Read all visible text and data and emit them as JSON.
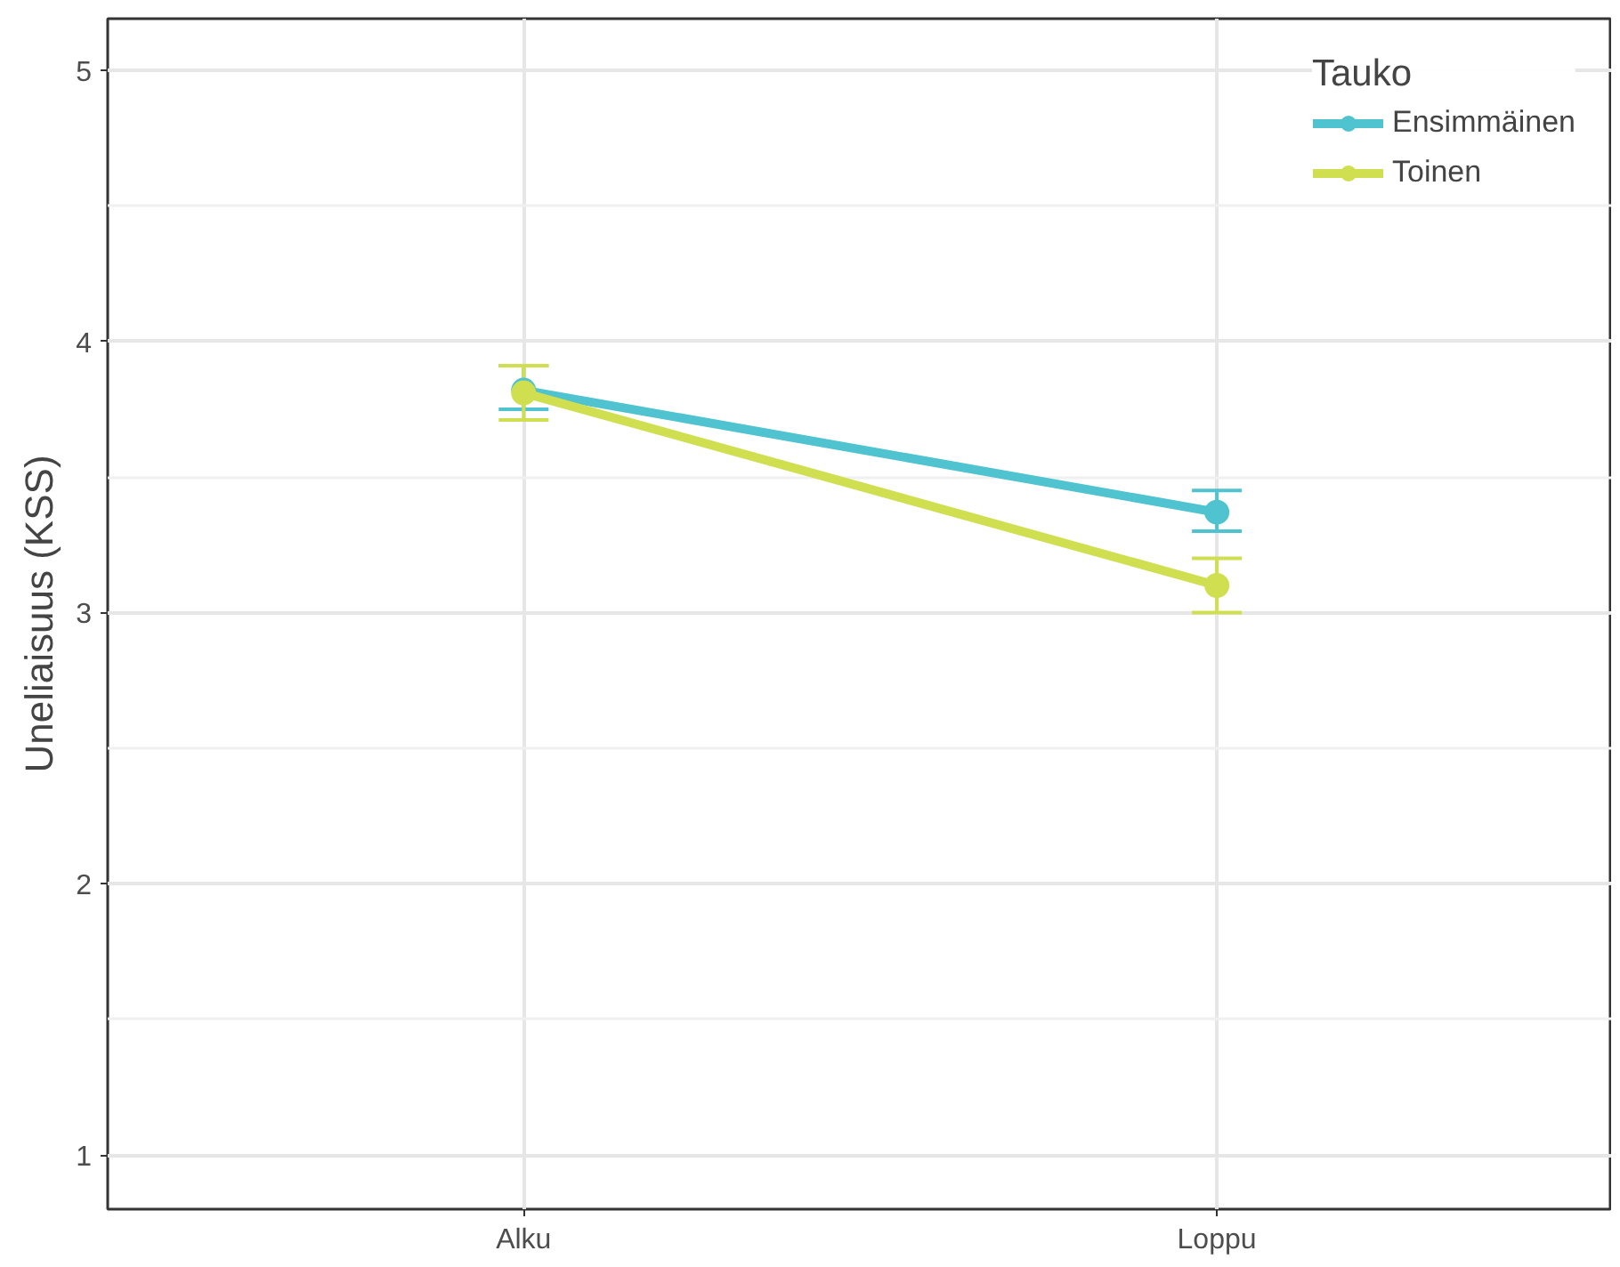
{
  "chart_data": {
    "type": "line",
    "ylabel": "Uneliaisuus (KSS)",
    "legend_title": "Tauko",
    "categories": [
      "Alku",
      "Loppu"
    ],
    "series": [
      {
        "name": "Ensimmäinen",
        "color": "#4fc3cf",
        "values": [
          3.82,
          3.37
        ],
        "errors": [
          [
            3.75,
            3.91
          ],
          [
            3.3,
            3.45
          ]
        ]
      },
      {
        "name": "Toinen",
        "color": "#cfdf4f",
        "values": [
          3.81,
          3.1
        ],
        "errors": [
          [
            3.71,
            3.91
          ],
          [
            3.0,
            3.2
          ]
        ]
      }
    ],
    "ylim": [
      0.8,
      5.19
    ],
    "yticks": [
      1,
      2,
      3,
      4,
      5
    ],
    "grid": true,
    "legend": "top right",
    "marker": "circle",
    "line_style": "solid"
  }
}
